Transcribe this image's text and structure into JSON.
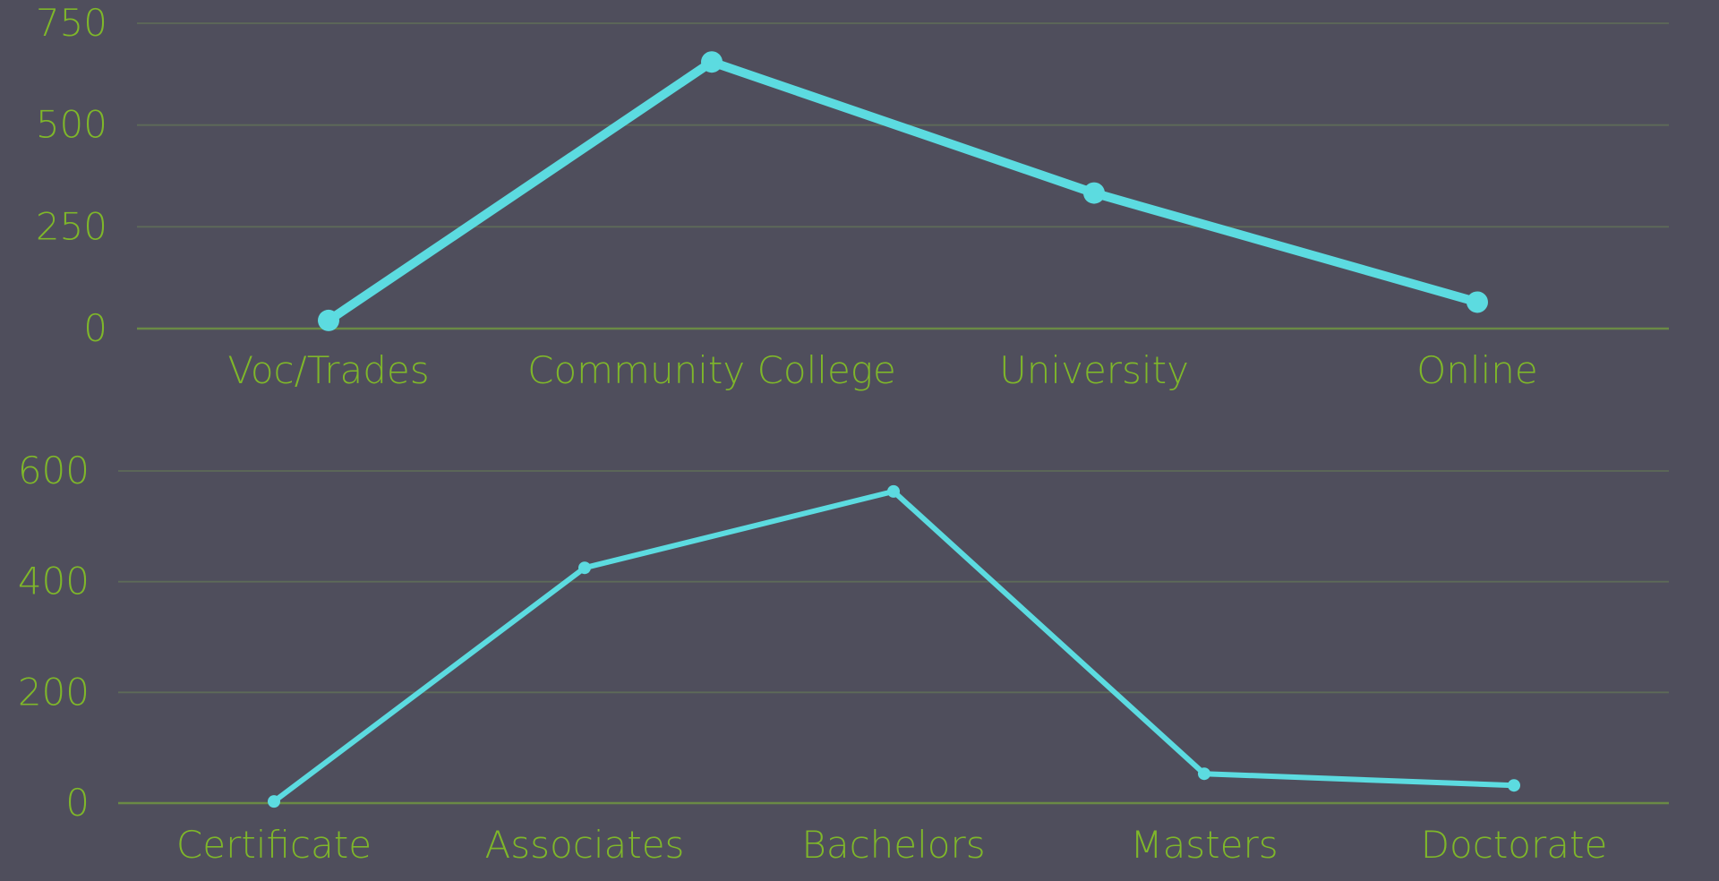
{
  "colors": {
    "background": "#4f4e5c",
    "line": "#5cdbe0",
    "label": "#7fb72a",
    "grid": "#5d6a58",
    "baseline": "#6a8a45"
  },
  "chart_data": [
    {
      "type": "line",
      "title": "",
      "xlabel": "",
      "ylabel": "",
      "categories": [
        "Voc/Trades",
        "Community College",
        "University",
        "Online"
      ],
      "series": [
        {
          "values": [
            20,
            655,
            333,
            65
          ]
        }
      ],
      "ylim": [
        0,
        750
      ],
      "yticks": [
        0,
        250,
        500,
        750
      ],
      "grid": true,
      "legend": "none"
    },
    {
      "type": "line",
      "title": "",
      "xlabel": "",
      "ylabel": "",
      "categories": [
        "Certificate",
        "Associates",
        "Bachelors",
        "Masters",
        "Doctorate"
      ],
      "series": [
        {
          "values": [
            3,
            425,
            563,
            53,
            32
          ]
        }
      ],
      "ylim": [
        0,
        600
      ],
      "yticks": [
        0,
        200,
        400,
        600
      ],
      "grid": true,
      "legend": "none"
    }
  ]
}
